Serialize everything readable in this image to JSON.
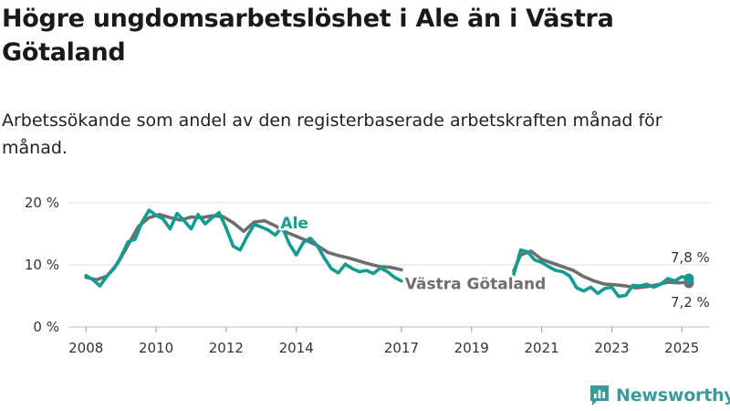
{
  "title": "Högre ungdomsarbetslöshet i Ale än i Västra Götaland",
  "subtitle": "Arbetssökande som andel av den registerbaserade arbetskraften månad för månad.",
  "brand": {
    "name": "Newsworthy"
  },
  "colors": {
    "ale": "#139c8f",
    "vg": "#6e6e70",
    "grid": "#e2e2e2",
    "text": "#333333"
  },
  "chart_data": {
    "type": "line",
    "x_unit": "year",
    "xlim": [
      2007.5,
      2025.8
    ],
    "ylim": [
      0,
      20
    ],
    "y_ticks": [
      {
        "value": 0,
        "label": "0 %"
      },
      {
        "value": 10,
        "label": "10 %"
      },
      {
        "value": 20,
        "label": "20 %"
      }
    ],
    "x_ticks": [
      {
        "value": 2008,
        "label": "2008"
      },
      {
        "value": 2010,
        "label": "2010"
      },
      {
        "value": 2012,
        "label": "2012"
      },
      {
        "value": 2014,
        "label": "2014"
      },
      {
        "value": 2017,
        "label": "2017"
      },
      {
        "value": 2019,
        "label": "2019"
      },
      {
        "value": 2021,
        "label": "2021"
      },
      {
        "value": 2023,
        "label": "2023"
      },
      {
        "value": 2025,
        "label": "2025"
      }
    ],
    "series": [
      {
        "name": "Västra Götaland",
        "color": "#6e6e70",
        "end_label": "7,2 %",
        "segments": [
          {
            "x": [
              2008.0,
              2008.3,
              2008.6,
              2008.9,
              2009.2,
              2009.5,
              2009.8,
              2010.1,
              2010.4,
              2010.7,
              2011.0,
              2011.3,
              2011.6,
              2011.9,
              2012.2,
              2012.5,
              2012.8,
              2013.1,
              2013.4,
              2013.7,
              2014.0,
              2014.3,
              2014.6,
              2014.9,
              2015.2,
              2015.5,
              2015.8,
              2016.1,
              2016.4,
              2016.7,
              2017.0
            ],
            "y": [
              8.0,
              7.6,
              8.2,
              10.2,
              13.2,
              16.2,
              17.6,
              18.1,
              17.6,
              17.2,
              17.7,
              17.6,
              17.9,
              17.8,
              16.8,
              15.4,
              16.9,
              17.1,
              16.3,
              15.3,
              14.6,
              13.9,
              13.1,
              12.0,
              11.5,
              11.1,
              10.6,
              10.1,
              9.7,
              9.6,
              9.2
            ]
          },
          {
            "x": [
              2020.2,
              2020.4,
              2020.7,
              2021.0,
              2021.3,
              2021.6,
              2021.9,
              2022.2,
              2022.5,
              2022.8,
              2023.1,
              2023.4,
              2023.7,
              2024.0,
              2024.3,
              2024.6,
              2024.9,
              2025.2
            ],
            "y": [
              9.0,
              11.6,
              12.2,
              10.9,
              10.3,
              9.7,
              9.1,
              8.1,
              7.4,
              6.9,
              6.8,
              6.6,
              6.3,
              6.5,
              6.8,
              7.2,
              7.1,
              7.2
            ]
          }
        ]
      },
      {
        "name": "Ale",
        "color": "#139c8f",
        "end_label": "7,8 %",
        "segments": [
          {
            "x": [
              2008.0,
              2008.2,
              2008.4,
              2008.6,
              2008.8,
              2009.0,
              2009.2,
              2009.4,
              2009.6,
              2009.8,
              2010.0,
              2010.2,
              2010.4,
              2010.6,
              2010.8,
              2011.0,
              2011.2,
              2011.4,
              2011.6,
              2011.8,
              2012.0,
              2012.2,
              2012.4,
              2012.6,
              2012.8,
              2013.0,
              2013.2,
              2013.4,
              2013.6,
              2013.8,
              2014.0,
              2014.2,
              2014.4,
              2014.6,
              2014.8,
              2015.0,
              2015.2,
              2015.4,
              2015.6,
              2015.8,
              2016.0,
              2016.2,
              2016.4,
              2016.6,
              2016.8,
              2017.0
            ],
            "y": [
              8.3,
              7.6,
              6.6,
              8.2,
              9.4,
              11.3,
              13.7,
              14.1,
              16.9,
              18.8,
              18.0,
              17.4,
              15.8,
              18.3,
              17.1,
              15.8,
              18.1,
              16.6,
              17.6,
              18.4,
              15.9,
              13.0,
              12.4,
              14.6,
              16.5,
              16.1,
              15.6,
              14.8,
              16.1,
              13.4,
              11.6,
              13.6,
              14.3,
              13.1,
              11.1,
              9.4,
              8.7,
              10.1,
              9.4,
              8.9,
              9.1,
              8.6,
              9.5,
              8.9,
              8.0,
              7.4
            ]
          },
          {
            "x": [
              2020.2,
              2020.4,
              2020.6,
              2020.8,
              2021.0,
              2021.2,
              2021.4,
              2021.6,
              2021.8,
              2022.0,
              2022.2,
              2022.4,
              2022.6,
              2022.8,
              2023.0,
              2023.2,
              2023.4,
              2023.6,
              2023.8,
              2024.0,
              2024.2,
              2024.4,
              2024.6,
              2024.8,
              2025.0,
              2025.2
            ],
            "y": [
              8.4,
              12.4,
              12.1,
              10.8,
              10.4,
              9.7,
              9.1,
              8.9,
              8.2,
              6.3,
              5.8,
              6.4,
              5.4,
              6.2,
              6.4,
              4.9,
              5.1,
              6.7,
              6.6,
              6.9,
              6.4,
              6.9,
              7.8,
              7.4,
              8.1,
              7.8
            ]
          }
        ]
      }
    ],
    "annotations": [
      {
        "text": "Ale",
        "series": "Ale"
      },
      {
        "text": "Västra Götaland",
        "series": "Västra Götaland"
      }
    ]
  }
}
